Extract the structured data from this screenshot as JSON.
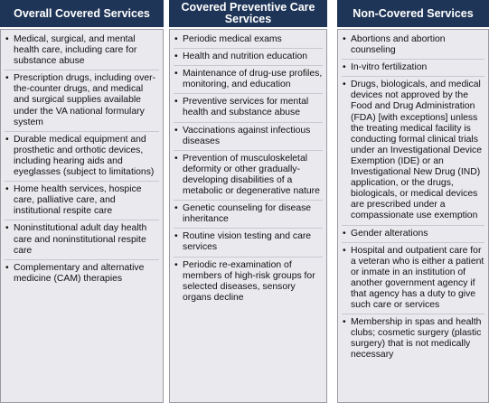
{
  "columns": [
    {
      "header": "Overall Covered Services",
      "items": [
        "Medical, surgical, and mental health care, including care for substance abuse",
        "Prescription drugs, including over-the-counter drugs, and medical and surgical supplies available under the VA national formulary system",
        "Durable medical equipment and prosthetic and orthotic devices, including hearing aids and eyeglasses (subject to limitations)",
        "Home health services, hospice care, palliative care, and institutional respite care",
        "Noninstitutional adult day health care and noninstitutional respite care",
        "Complementary and alternative medicine (CAM) therapies"
      ]
    },
    {
      "header": "Covered Preventive Care Services",
      "items": [
        "Periodic medical exams",
        "Health and nutrition education",
        "Maintenance of drug-use profiles, monitoring, and education",
        "Preventive services for mental health and substance abuse",
        "Vaccinations against infectious diseases",
        "Prevention of musculoskeletal deformity or other gradually-developing disabilities of a metabolic or degenerative nature",
        "Genetic counseling for disease inheritance",
        "Routine vision testing and care services",
        "Periodic re-examination of members of high-risk groups for selected diseases, sensory organs decline"
      ]
    },
    {
      "header": "Non-Covered Services",
      "items": [
        "Abortions and abortion counseling",
        "In-vitro fertilization",
        "Drugs, biologicals, and medical devices not approved by the Food and Drug Administration (FDA) [with exceptions] unless the treating medical facility is conducting formal clinical trials under an Investigational Device Exemption (IDE) or an Investigational New Drug (IND) application, or the drugs, biologicals, or medical devices are prescribed under a compassionate use exemption",
        "Gender alterations",
        "Hospital and outpatient care for a veteran who is either a patient or inmate in an institution of another government agency if that agency has a duty to give such care or services",
        "Membership in spas and health clubs; cosmetic surgery (plastic surgery) that is not medically necessary"
      ]
    }
  ]
}
